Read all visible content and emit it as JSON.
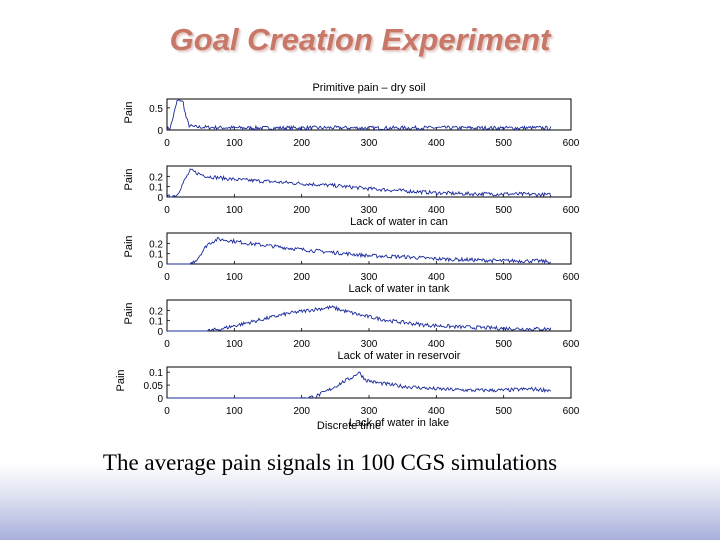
{
  "slide": {
    "title": "Goal Creation Experiment",
    "caption": "The average pain signals in 100 CGS simulations",
    "title_color": "#c87868",
    "line_color": "#1a2a9c"
  },
  "chart_data": [
    {
      "type": "line",
      "title": "Primitive pain – dry soil",
      "xlabel": "",
      "ylabel": "Pain",
      "xlim": [
        0,
        600
      ],
      "ylim": [
        0,
        0.7
      ],
      "xticks": [
        "0",
        "100",
        "200",
        "300",
        "400",
        "500",
        "600"
      ],
      "yticks": [
        "0.5",
        "0"
      ],
      "series": [
        {
          "values": [
            [
              0,
              0.02
            ],
            [
              5,
              0.05
            ],
            [
              10,
              0.35
            ],
            [
              15,
              0.65
            ],
            [
              20,
              0.68
            ],
            [
              24,
              0.62
            ],
            [
              28,
              0.3
            ],
            [
              33,
              0.1
            ],
            [
              40,
              0.07
            ],
            [
              60,
              0.06
            ],
            [
              100,
              0.05
            ],
            [
              150,
              0.045
            ],
            [
              200,
              0.05
            ],
            [
              250,
              0.05
            ],
            [
              300,
              0.045
            ],
            [
              400,
              0.05
            ],
            [
              500,
              0.045
            ],
            [
              560,
              0.05
            ],
            [
              570,
              0.04
            ]
          ]
        }
      ]
    },
    {
      "type": "line",
      "title": "",
      "xlabel": "Lack of water in can",
      "ylabel": "Pain",
      "xlim": [
        0,
        600
      ],
      "ylim": [
        0,
        0.3
      ],
      "xticks": [
        "0",
        "100",
        "200",
        "300",
        "400",
        "500",
        "600"
      ],
      "yticks": [
        "0.2",
        "0.1",
        "0"
      ],
      "series": [
        {
          "values": [
            [
              0,
              0.0
            ],
            [
              15,
              0.02
            ],
            [
              25,
              0.15
            ],
            [
              35,
              0.26
            ],
            [
              45,
              0.23
            ],
            [
              60,
              0.2
            ],
            [
              100,
              0.17
            ],
            [
              150,
              0.15
            ],
            [
              200,
              0.13
            ],
            [
              250,
              0.11
            ],
            [
              300,
              0.08
            ],
            [
              350,
              0.06
            ],
            [
              400,
              0.04
            ],
            [
              450,
              0.03
            ],
            [
              500,
              0.03
            ],
            [
              550,
              0.025
            ],
            [
              570,
              0.02
            ]
          ]
        }
      ]
    },
    {
      "type": "line",
      "title": "",
      "xlabel": "Lack of water in tank",
      "ylabel": "Pain",
      "xlim": [
        0,
        600
      ],
      "ylim": [
        0,
        0.3
      ],
      "xticks": [
        "0",
        "100",
        "200",
        "300",
        "400",
        "500",
        "600"
      ],
      "yticks": [
        "0.2",
        "0.1",
        "0"
      ],
      "series": [
        {
          "values": [
            [
              0,
              0.0
            ],
            [
              35,
              0.0
            ],
            [
              45,
              0.05
            ],
            [
              60,
              0.19
            ],
            [
              75,
              0.24
            ],
            [
              90,
              0.23
            ],
            [
              120,
              0.2
            ],
            [
              160,
              0.17
            ],
            [
              200,
              0.14
            ],
            [
              250,
              0.11
            ],
            [
              300,
              0.08
            ],
            [
              350,
              0.07
            ],
            [
              400,
              0.05
            ],
            [
              450,
              0.04
            ],
            [
              500,
              0.03
            ],
            [
              550,
              0.03
            ],
            [
              570,
              0.02
            ]
          ]
        }
      ]
    },
    {
      "type": "line",
      "title": "",
      "xlabel": "Lack of water in reservoir",
      "ylabel": "Pain",
      "xlim": [
        0,
        600
      ],
      "ylim": [
        0,
        0.3
      ],
      "xticks": [
        "0",
        "100",
        "200",
        "300",
        "400",
        "500",
        "600"
      ],
      "yticks": [
        "0.2",
        "0.1",
        "0"
      ],
      "series": [
        {
          "values": [
            [
              0,
              0.0
            ],
            [
              60,
              0.0
            ],
            [
              80,
              0.02
            ],
            [
              120,
              0.08
            ],
            [
              180,
              0.17
            ],
            [
              220,
              0.21
            ],
            [
              245,
              0.23
            ],
            [
              260,
              0.2
            ],
            [
              290,
              0.15
            ],
            [
              330,
              0.1
            ],
            [
              380,
              0.06
            ],
            [
              430,
              0.04
            ],
            [
              480,
              0.03
            ],
            [
              530,
              0.02
            ],
            [
              570,
              0.02
            ]
          ]
        }
      ]
    },
    {
      "type": "line",
      "title": "",
      "xlabel": "Lack of water in lake",
      "ylabel": "Pain",
      "xlim": [
        0,
        600
      ],
      "ylim": [
        0,
        0.12
      ],
      "xticks": [
        "0",
        "100",
        "200",
        "300",
        "400",
        "500",
        "600"
      ],
      "yticks": [
        "0.1",
        "0.05",
        "0"
      ],
      "series": [
        {
          "values": [
            [
              0,
              0.0
            ],
            [
              200,
              0.0
            ],
            [
              220,
              0.005
            ],
            [
              240,
              0.03
            ],
            [
              260,
              0.06
            ],
            [
              275,
              0.08
            ],
            [
              285,
              0.1
            ],
            [
              295,
              0.07
            ],
            [
              310,
              0.06
            ],
            [
              350,
              0.045
            ],
            [
              400,
              0.035
            ],
            [
              450,
              0.03
            ],
            [
              500,
              0.03
            ],
            [
              540,
              0.035
            ],
            [
              570,
              0.03
            ]
          ]
        }
      ]
    }
  ],
  "bottom_xlabel": "Discrete time"
}
